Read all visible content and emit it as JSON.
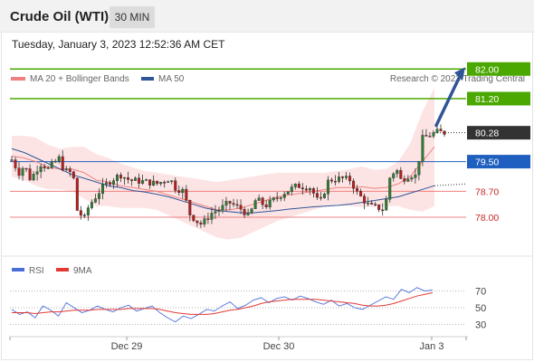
{
  "header": {
    "instrument": "Crude Oil (WTI)",
    "timeframe": "30 MIN",
    "datetime": "Tuesday, January 3, 2023 12:52:36 AM CET"
  },
  "legend": {
    "ma20": "MA 20 + Bollinger Bands",
    "ma50": "MA 50",
    "copyright": "Research © 2023 Trading Central",
    "rsi": "RSI",
    "rsi_ma": "9MA"
  },
  "colors": {
    "up_candle": "#2e7d32",
    "down_candle": "#b71c1c",
    "ma20": "#f08080",
    "ma50": "#2f5597",
    "bollinger_fill": "#fde4e4",
    "target_green": "#4aa800",
    "pivot_blue": "#1f5fbf",
    "support_red": "#f08080",
    "current_dark": "#333333",
    "arrow": "#2f5597",
    "rsi_line": "#4a6fdc",
    "rsi_ma_line": "#e53935"
  },
  "price_levels": [
    {
      "name": "target-2",
      "value": 82.0,
      "label": "82.00",
      "style": "green-box"
    },
    {
      "name": "target-1",
      "value": 81.2,
      "label": "81.20",
      "style": "green-box"
    },
    {
      "name": "last",
      "value": 80.28,
      "label": "80.28",
      "style": "dark-box"
    },
    {
      "name": "pivot",
      "value": 79.5,
      "label": "79.50",
      "style": "blue-box"
    },
    {
      "name": "support-1",
      "value": 78.7,
      "label": "78.70",
      "style": "red-text"
    },
    {
      "name": "support-2",
      "value": 78.0,
      "label": "78.00",
      "style": "red-text"
    }
  ],
  "rsi_levels": [
    "70",
    "50",
    "30"
  ],
  "x_axis": [
    "Dec 29",
    "Dec 30",
    "Jan 3"
  ],
  "chart_data": {
    "type": "line",
    "title": "Crude Oil (WTI)",
    "timeframe": "30 MIN",
    "x_ticks": [
      "Dec 29",
      "Dec 30",
      "Jan 3"
    ],
    "price_ylim": [
      77.0,
      82.8
    ],
    "series": [
      {
        "name": "MA 20",
        "values": [
          79.65,
          79.6,
          79.5,
          79.35,
          79.3,
          79.3,
          79.2,
          79.0,
          78.95,
          78.85,
          78.8,
          78.75,
          78.7,
          78.6,
          78.5,
          78.4,
          78.3,
          78.2,
          78.2,
          78.25,
          78.35,
          78.45,
          78.55,
          78.6,
          78.65,
          78.7,
          78.75,
          78.8,
          78.8,
          78.82,
          78.78,
          78.8,
          78.9,
          79.1,
          79.5,
          79.9
        ]
      },
      {
        "name": "MA 50",
        "values": [
          79.85,
          79.75,
          79.6,
          79.45,
          79.3,
          79.15,
          79.05,
          78.95,
          78.85,
          78.8,
          78.72,
          78.68,
          78.62,
          78.55,
          78.45,
          78.35,
          78.25,
          78.18,
          78.15,
          78.12,
          78.12,
          78.15,
          78.18,
          78.22,
          78.25,
          78.28,
          78.3,
          78.32,
          78.35,
          78.4,
          78.45,
          78.5,
          78.55,
          78.65,
          78.75,
          78.85
        ]
      }
    ],
    "levels": [
      82.0,
      81.2,
      80.28,
      79.5,
      78.7,
      78.0
    ],
    "rsi": {
      "ylim": [
        0,
        100
      ],
      "levels": [
        70,
        50,
        30
      ],
      "rsi_values": [
        48,
        42,
        45,
        38,
        52,
        47,
        40,
        56,
        50,
        44,
        47,
        52,
        48,
        45,
        50,
        53,
        46,
        49,
        52,
        44,
        38,
        33,
        40,
        37,
        42,
        48,
        46,
        52,
        57,
        49,
        53,
        59,
        62,
        56,
        61,
        63,
        59,
        64,
        61,
        57,
        54,
        59,
        52,
        55,
        50,
        48,
        53,
        58,
        63,
        60,
        72,
        68,
        74,
        70,
        71
      ],
      "ma_values": [
        44,
        44,
        44,
        43,
        44,
        45,
        45,
        46,
        47,
        47,
        47,
        48,
        48,
        48,
        48,
        49,
        49,
        49,
        49,
        48,
        46,
        44,
        43,
        42,
        42,
        42,
        43,
        45,
        47,
        48,
        50,
        52,
        55,
        57,
        58,
        59,
        60,
        60,
        60,
        60,
        59,
        58,
        57,
        56,
        55,
        53,
        52,
        52,
        53,
        55,
        58,
        61,
        64,
        66,
        68
      ]
    }
  }
}
